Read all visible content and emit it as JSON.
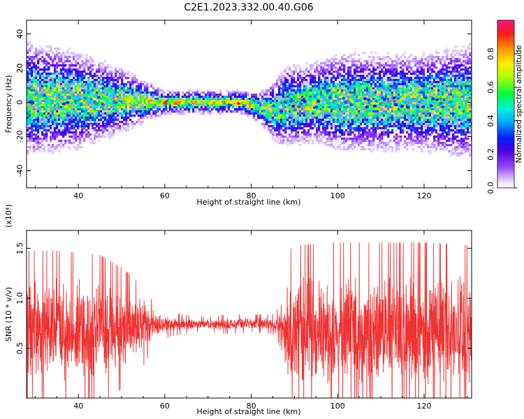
{
  "figure": {
    "title": "C2E1.2023.332.00.40.G06"
  },
  "chart_data": [
    {
      "type": "heatmap",
      "xlabel": "Height of straight line (km)",
      "ylabel": "Frequency (Hz)",
      "xlim": [
        28,
        131
      ],
      "ylim": [
        -50,
        48
      ],
      "xticks": [
        40,
        60,
        80,
        100,
        120
      ],
      "yticks": [
        -40,
        -20,
        0,
        20,
        40
      ],
      "colorbar": {
        "label": "Normalized spectral amplitude",
        "range": [
          0.0,
          1.0
        ],
        "ticks": [
          "0.0",
          "0.2",
          "0.4",
          "0.6",
          "0.8"
        ],
        "colormap": "rainbow (purple to red)"
      },
      "ridge": {
        "description": "concentrated energy near 0 Hz",
        "x": [
          30,
          40,
          50,
          60,
          70,
          78,
          82,
          86,
          88,
          95,
          100,
          110,
          120,
          130
        ],
        "center_hz": [
          2,
          1,
          1,
          0,
          0,
          0,
          -3,
          -5,
          -2,
          0,
          0,
          0,
          0,
          0
        ],
        "spread_hz": [
          14,
          12,
          8,
          3,
          3,
          3,
          4,
          8,
          10,
          10,
          12,
          12,
          12,
          14
        ],
        "peak_amplitude": [
          0.5,
          0.5,
          0.6,
          0.9,
          0.8,
          0.95,
          0.7,
          0.5,
          0.4,
          0.5,
          0.45,
          0.45,
          0.45,
          0.5
        ]
      }
    },
    {
      "type": "line",
      "xlabel": "Height of straight line (km)",
      "ylabel": "SNR (10 * v/v)",
      "multiplier": "(x10⁴)",
      "xlim": [
        28,
        131
      ],
      "ylim": [
        0.0,
        1.68
      ],
      "xticks": [
        40,
        60,
        80,
        100,
        120
      ],
      "yticks": [
        0.5,
        1.0,
        1.5
      ],
      "series": [
        {
          "color": "#ee3333",
          "envelope": {
            "x": [
              28,
              35,
              45,
              50,
              55,
              58,
              62,
              66,
              70,
              75,
              80,
              85,
              87,
              88,
              90,
              100,
              110,
              120,
              131
            ],
            "mean": [
              0.68,
              0.68,
              0.68,
              0.7,
              0.72,
              0.74,
              0.74,
              0.74,
              0.74,
              0.74,
              0.75,
              0.74,
              0.72,
              0.66,
              0.66,
              0.66,
              0.66,
              0.66,
              0.66
            ],
            "amplitude": [
              0.55,
              0.55,
              0.52,
              0.42,
              0.28,
              0.12,
              0.08,
              0.06,
              0.05,
              0.07,
              0.06,
              0.07,
              0.15,
              0.55,
              0.6,
              0.62,
              0.62,
              0.62,
              0.6
            ]
          }
        }
      ]
    }
  ]
}
